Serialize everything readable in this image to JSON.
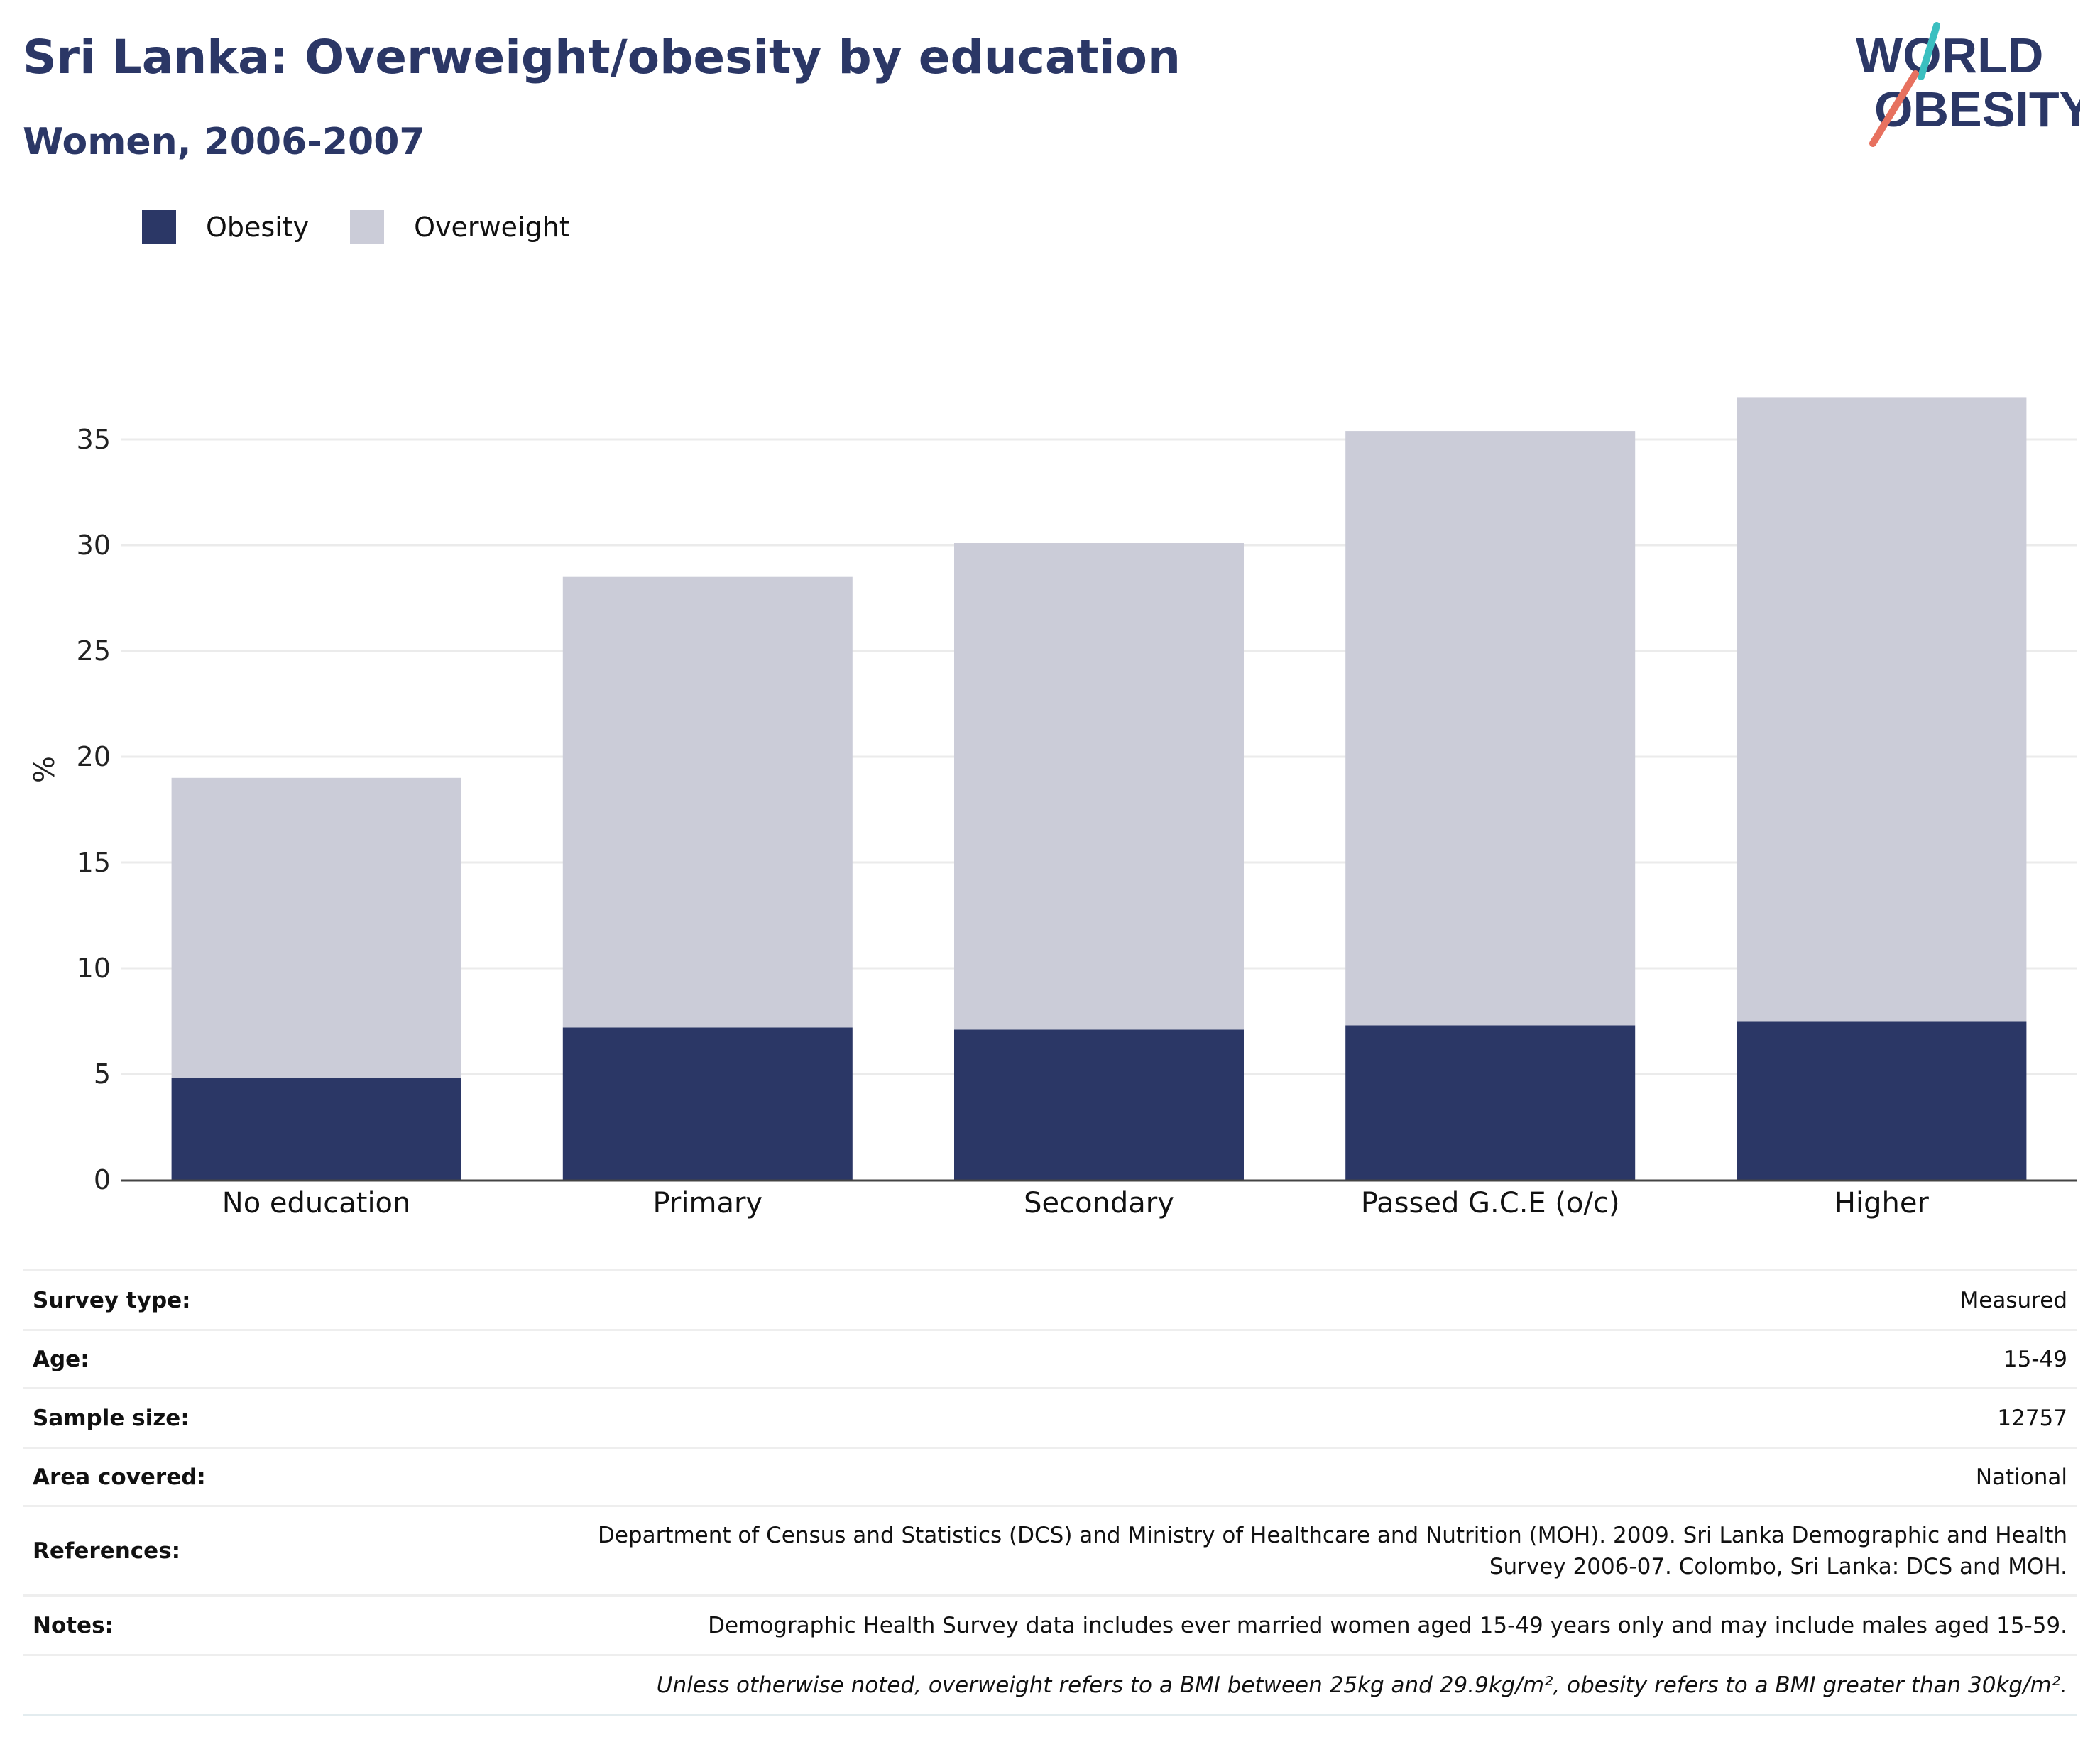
{
  "header": {
    "title": "Sri Lanka: Overweight/obesity by education",
    "subtitle": "Women, 2006-2007",
    "logo_line1": "WORLD",
    "logo_line2": "OBESITY"
  },
  "colors": {
    "obesity": "#2b3766",
    "overweight": "#cbccd8",
    "title": "#2b3766",
    "logo_teal": "#3bbfc0",
    "logo_coral": "#e7715f"
  },
  "chart_data": {
    "type": "bar",
    "stacked": true,
    "categories": [
      "No education",
      "Primary",
      "Secondary",
      "Passed G.C.E (o/c)",
      "Higher"
    ],
    "series": [
      {
        "name": "Obesity",
        "values": [
          4.8,
          7.2,
          7.1,
          7.3,
          7.5
        ]
      },
      {
        "name": "Overweight",
        "values": [
          14.2,
          21.3,
          23.0,
          28.1,
          29.5
        ]
      }
    ],
    "ylabel": "%",
    "ylim": [
      0,
      37
    ],
    "yticks": [
      0,
      5,
      10,
      15,
      20,
      25,
      30,
      35
    ],
    "grid": true,
    "legend_position": "top-left"
  },
  "info": {
    "rows": [
      {
        "key": "Survey type:",
        "value": "Measured"
      },
      {
        "key": "Age:",
        "value": "15-49"
      },
      {
        "key": "Sample size:",
        "value": "12757"
      },
      {
        "key": "Area covered:",
        "value": "National"
      },
      {
        "key": "References:",
        "value_lines": [
          "Department of Census and Statistics (DCS) and Ministry of Healthcare and Nutrition (MOH). 2009. Sri Lanka Demographic and Health",
          "Survey 2006-07. Colombo, Sri Lanka: DCS and MOH."
        ]
      },
      {
        "key": "Notes:",
        "value": "Demographic Health Survey data includes ever married women aged 15-49 years only and may include males aged 15-59."
      }
    ],
    "footnote": "Unless otherwise noted, overweight refers to a BMI between 25kg and 29.9kg/m², obesity refers to a BMI greater than 30kg/m²."
  }
}
